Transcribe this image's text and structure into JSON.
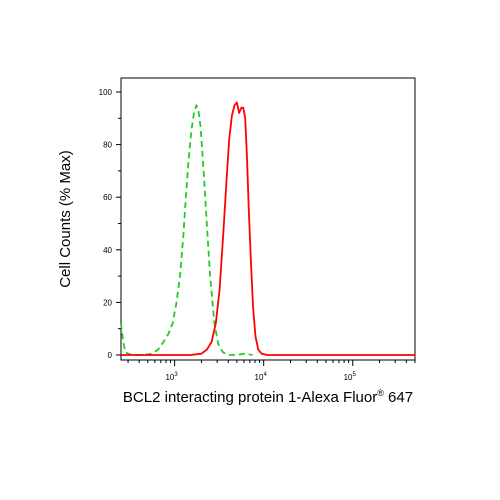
{
  "chart_data": {
    "type": "line",
    "title": "",
    "xlabel": {
      "main": "BCL2 interacting protein 1-Alexa Fluor",
      "superscript": "®",
      "suffix": " 647"
    },
    "ylabel": "Cell Counts (% Max)",
    "x_scale": "log",
    "xlim": [
      250,
      500000
    ],
    "ylim": [
      0,
      100
    ],
    "y_ticks": [
      0,
      20,
      40,
      60,
      80,
      100
    ],
    "x_ticks": [
      {
        "value": 1000,
        "base": "10",
        "exp": "3"
      },
      {
        "value": 10000,
        "base": "10",
        "exp": "4"
      },
      {
        "value": 100000,
        "base": "10",
        "exp": "5"
      }
    ],
    "grid": false,
    "series": [
      {
        "color": "#22cc22",
        "dash": "dashed",
        "points": [
          [
            250,
            12
          ],
          [
            265,
            5
          ],
          [
            280,
            1
          ],
          [
            330,
            0
          ],
          [
            450,
            0
          ],
          [
            550,
            0.5
          ],
          [
            650,
            2
          ],
          [
            750,
            5
          ],
          [
            850,
            8
          ],
          [
            950,
            12
          ],
          [
            1050,
            20
          ],
          [
            1150,
            30
          ],
          [
            1250,
            45
          ],
          [
            1350,
            62
          ],
          [
            1450,
            76
          ],
          [
            1550,
            86
          ],
          [
            1650,
            92
          ],
          [
            1750,
            95
          ],
          [
            1850,
            93
          ],
          [
            1950,
            87
          ],
          [
            2100,
            72
          ],
          [
            2300,
            50
          ],
          [
            2500,
            30
          ],
          [
            2800,
            12
          ],
          [
            3100,
            4
          ],
          [
            3500,
            1
          ],
          [
            4000,
            0
          ],
          [
            4600,
            0
          ],
          [
            5000,
            0
          ],
          [
            6000,
            0.5
          ],
          [
            7500,
            0
          ]
        ]
      },
      {
        "color": "#ff0000",
        "dash": "solid",
        "points": [
          [
            250,
            0
          ],
          [
            1000,
            0
          ],
          [
            1500,
            0
          ],
          [
            2000,
            0.5
          ],
          [
            2300,
            2
          ],
          [
            2600,
            5
          ],
          [
            2900,
            12
          ],
          [
            3200,
            25
          ],
          [
            3500,
            45
          ],
          [
            3800,
            65
          ],
          [
            4100,
            82
          ],
          [
            4400,
            91
          ],
          [
            4700,
            95
          ],
          [
            5000,
            96
          ],
          [
            5300,
            92
          ],
          [
            5600,
            94
          ],
          [
            5900,
            94
          ],
          [
            6200,
            90
          ],
          [
            6500,
            75
          ],
          [
            6800,
            55
          ],
          [
            7200,
            35
          ],
          [
            7600,
            18
          ],
          [
            8100,
            7
          ],
          [
            8700,
            2
          ],
          [
            9500,
            0.5
          ],
          [
            11000,
            0
          ],
          [
            20000,
            0
          ],
          [
            100000,
            0
          ],
          [
            500000,
            0
          ]
        ]
      }
    ]
  }
}
